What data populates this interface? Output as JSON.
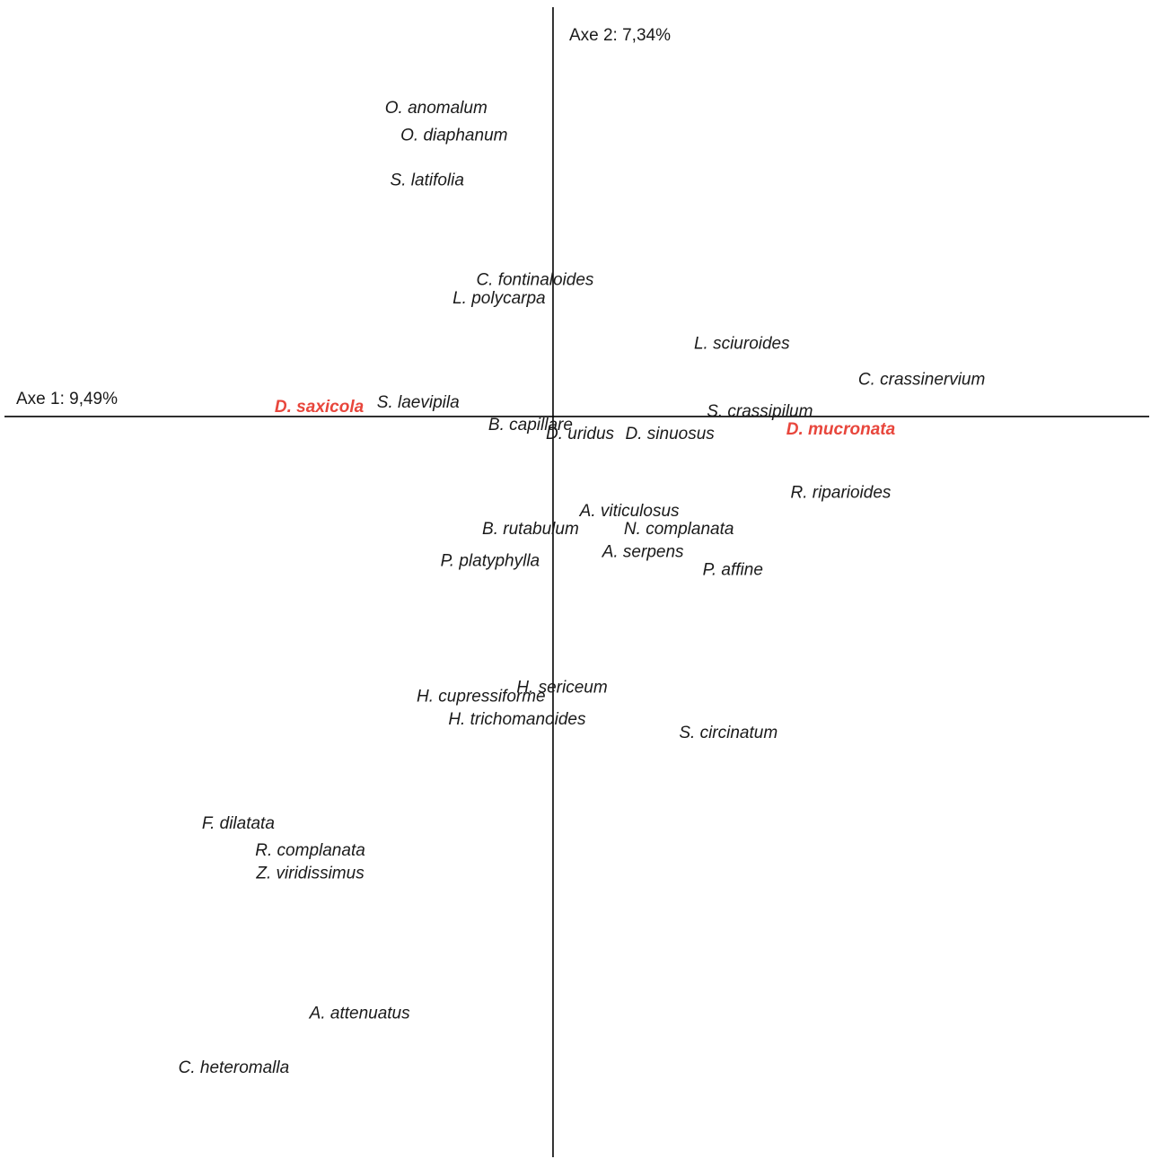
{
  "chart_data": {
    "type": "scatter",
    "title": "",
    "axes": {
      "x": {
        "label": "Axe 1: 9,49%",
        "range": [
          -6.15,
          6.65
        ]
      },
      "y": {
        "label": "Axe 2: 7,34%",
        "range": [
          -8.2,
          4.6
        ]
      }
    },
    "colors": {
      "normal": "#1a1a1a",
      "highlight": "#e8463c",
      "axis": "#000000"
    },
    "points": [
      {
        "label": "O. anomalum",
        "x": -1.3,
        "y": 3.4,
        "highlight": false
      },
      {
        "label": "O. diaphanum",
        "x": -1.1,
        "y": 3.1,
        "highlight": false
      },
      {
        "label": "S. latifolia",
        "x": -1.4,
        "y": 2.6,
        "highlight": false
      },
      {
        "label": "C. fontinaloides",
        "x": -0.2,
        "y": 1.5,
        "highlight": false
      },
      {
        "label": "L. polycarpa",
        "x": -0.6,
        "y": 1.3,
        "highlight": false
      },
      {
        "label": "L. sciuroides",
        "x": 2.1,
        "y": 0.8,
        "highlight": false
      },
      {
        "label": "C. crassinervium",
        "x": 4.1,
        "y": 0.4,
        "highlight": false
      },
      {
        "label": "S. laevipila",
        "x": -1.5,
        "y": 0.15,
        "highlight": false
      },
      {
        "label": "D. saxicola",
        "x": -2.6,
        "y": 0.1,
        "highlight": true
      },
      {
        "label": "S. crassipilum",
        "x": 2.3,
        "y": 0.05,
        "highlight": false
      },
      {
        "label": "B. capillare",
        "x": -0.25,
        "y": -0.1,
        "highlight": false
      },
      {
        "label": "D. mucronata",
        "x": 3.2,
        "y": -0.15,
        "highlight": true
      },
      {
        "label": "D. uridus",
        "x": 0.3,
        "y": -0.2,
        "highlight": false
      },
      {
        "label": "D. sinuosus",
        "x": 1.3,
        "y": -0.2,
        "highlight": false
      },
      {
        "label": "R. riparioides",
        "x": 3.2,
        "y": -0.85,
        "highlight": false
      },
      {
        "label": "A. viticulosus",
        "x": 0.85,
        "y": -1.05,
        "highlight": false
      },
      {
        "label": "B. rutabulum",
        "x": -0.25,
        "y": -1.25,
        "highlight": false
      },
      {
        "label": "N. complanata",
        "x": 1.4,
        "y": -1.25,
        "highlight": false
      },
      {
        "label": "A. serpens",
        "x": 1.0,
        "y": -1.5,
        "highlight": false
      },
      {
        "label": "P. platyphylla",
        "x": -0.7,
        "y": -1.6,
        "highlight": false
      },
      {
        "label": "P. affine",
        "x": 2.0,
        "y": -1.7,
        "highlight": false
      },
      {
        "label": "H. sericeum",
        "x": 0.1,
        "y": -3.0,
        "highlight": false
      },
      {
        "label": "H. cupressiforme",
        "x": -0.8,
        "y": -3.1,
        "highlight": false
      },
      {
        "label": "H. trichomanoides",
        "x": -0.4,
        "y": -3.35,
        "highlight": false
      },
      {
        "label": "S. circinatum",
        "x": 1.95,
        "y": -3.5,
        "highlight": false
      },
      {
        "label": "F. dilatata",
        "x": -3.5,
        "y": -4.5,
        "highlight": false
      },
      {
        "label": "R. complanata",
        "x": -2.7,
        "y": -4.8,
        "highlight": false
      },
      {
        "label": "Z. viridissimus",
        "x": -2.7,
        "y": -5.05,
        "highlight": false
      },
      {
        "label": "A. attenuatus",
        "x": -2.15,
        "y": -6.6,
        "highlight": false
      },
      {
        "label": "C. heteromalla",
        "x": -3.55,
        "y": -7.2,
        "highlight": false
      }
    ]
  }
}
